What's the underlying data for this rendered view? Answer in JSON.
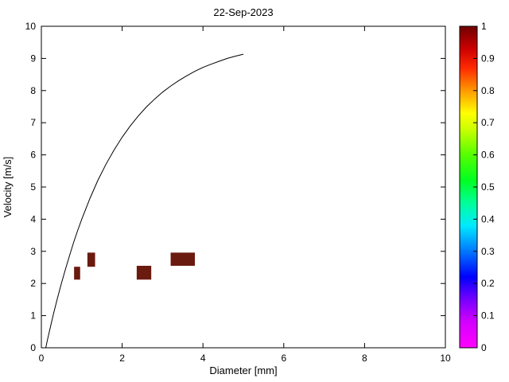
{
  "title": "22-Sep-2023",
  "chart_data": {
    "type": "heatmap",
    "title": "22-Sep-2023",
    "xlabel": "Diameter [mm]",
    "ylabel": "Velocity [m/s]",
    "xlim": [
      0,
      10
    ],
    "ylim": [
      0,
      10
    ],
    "x_ticks": [
      0,
      2,
      4,
      6,
      8,
      10
    ],
    "y_ticks": [
      0,
      1,
      2,
      3,
      4,
      5,
      6,
      7,
      8,
      9,
      10
    ],
    "grid": false,
    "legend": "none",
    "curve": {
      "name": "terminal-velocity-curve",
      "color": "#000000",
      "points": [
        [
          0.11,
          0.0
        ],
        [
          0.15,
          0.24
        ],
        [
          0.2,
          0.52
        ],
        [
          0.3,
          1.05
        ],
        [
          0.4,
          1.55
        ],
        [
          0.5,
          2.02
        ],
        [
          0.6,
          2.46
        ],
        [
          0.7,
          2.88
        ],
        [
          0.8,
          3.28
        ],
        [
          0.9,
          3.65
        ],
        [
          1.0,
          4.0
        ],
        [
          1.2,
          4.64
        ],
        [
          1.4,
          5.21
        ],
        [
          1.6,
          5.71
        ],
        [
          1.8,
          6.15
        ],
        [
          2.0,
          6.55
        ],
        [
          2.2,
          6.9
        ],
        [
          2.4,
          7.21
        ],
        [
          2.6,
          7.49
        ],
        [
          2.8,
          7.73
        ],
        [
          3.0,
          7.95
        ],
        [
          3.2,
          8.14
        ],
        [
          3.4,
          8.31
        ],
        [
          3.6,
          8.46
        ],
        [
          3.8,
          8.6
        ],
        [
          4.0,
          8.72
        ],
        [
          4.2,
          8.82
        ],
        [
          4.4,
          8.91
        ],
        [
          4.6,
          9.0
        ],
        [
          4.8,
          9.07
        ],
        [
          5.0,
          9.13
        ]
      ]
    },
    "bin_color": "#6b1a0f",
    "bins": [
      {
        "d_min": 0.81,
        "d_max": 0.96,
        "v_min": 2.12,
        "v_max": 2.52,
        "value": 1
      },
      {
        "d_min": 1.14,
        "d_max": 1.33,
        "v_min": 2.52,
        "v_max": 2.96,
        "value": 1
      },
      {
        "d_min": 2.36,
        "d_max": 2.72,
        "v_min": 2.12,
        "v_max": 2.55,
        "value": 1
      },
      {
        "d_min": 3.2,
        "d_max": 3.8,
        "v_min": 2.55,
        "v_max": 2.96,
        "value": 1
      }
    ],
    "colorbar": {
      "min": 0,
      "max": 1,
      "ticks": [
        "0",
        "0.1",
        "0.2",
        "0.3",
        "0.4",
        "0.5",
        "0.6",
        "0.7",
        "0.8",
        "0.9",
        "1"
      ],
      "stops": [
        {
          "pos": 0.0,
          "color": "#ff00ff"
        },
        {
          "pos": 0.08,
          "color": "#d400ff"
        },
        {
          "pos": 0.15,
          "color": "#7700ff"
        },
        {
          "pos": 0.22,
          "color": "#0000ff"
        },
        {
          "pos": 0.3,
          "color": "#0077ff"
        },
        {
          "pos": 0.38,
          "color": "#00eaff"
        },
        {
          "pos": 0.45,
          "color": "#00ff99"
        },
        {
          "pos": 0.52,
          "color": "#00ff22"
        },
        {
          "pos": 0.6,
          "color": "#55ff00"
        },
        {
          "pos": 0.68,
          "color": "#ccff00"
        },
        {
          "pos": 0.73,
          "color": "#ffff00"
        },
        {
          "pos": 0.8,
          "color": "#ff9900"
        },
        {
          "pos": 0.87,
          "color": "#ff2a00"
        },
        {
          "pos": 0.93,
          "color": "#cc0000"
        },
        {
          "pos": 1.0,
          "color": "#700000"
        }
      ]
    }
  }
}
